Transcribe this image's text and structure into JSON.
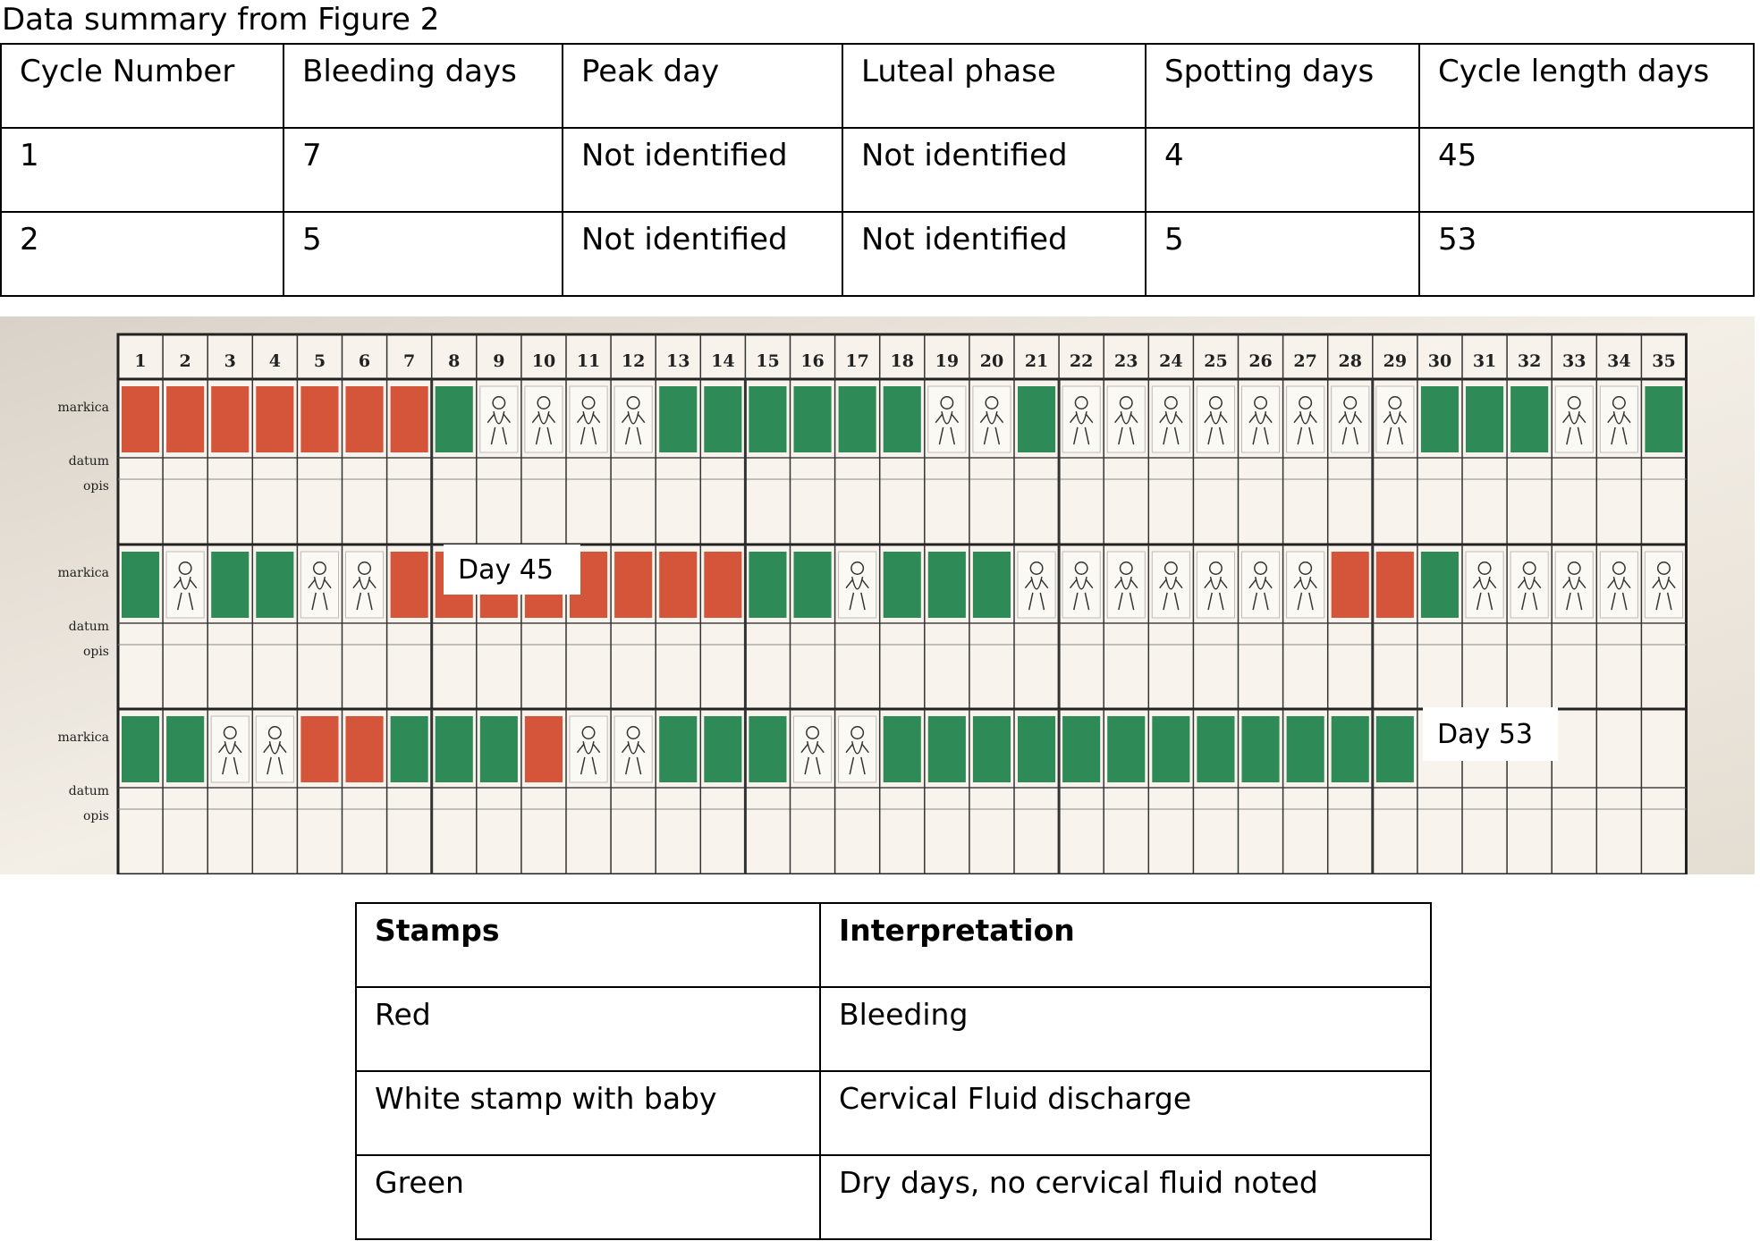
{
  "title": "Data summary from Figure 2",
  "summary_table": {
    "header": [
      "Cycle Number",
      "Bleeding days",
      "Peak day",
      "Luteal phase",
      "Spotting days",
      "Cycle length days"
    ],
    "rows": [
      [
        "1",
        "7",
        "Not identified",
        "Not identified",
        "4",
        "45"
      ],
      [
        "2",
        "5",
        "Not identified",
        "Not identified",
        "5",
        "53"
      ]
    ]
  },
  "chart_photo": {
    "day_numbers": [
      1,
      2,
      3,
      4,
      5,
      6,
      7,
      8,
      9,
      10,
      11,
      12,
      13,
      14,
      15,
      16,
      17,
      18,
      19,
      20,
      21,
      22,
      23,
      24,
      25,
      26,
      27,
      28,
      29,
      30,
      31,
      32,
      33,
      34,
      35
    ],
    "row_labels": [
      "markica",
      "datum",
      "opis"
    ],
    "annotations": [
      "Day 45",
      "Day 53"
    ]
  },
  "legend_table": {
    "header": [
      "Stamps",
      "Interpretation"
    ],
    "rows": [
      [
        "Red",
        "Bleeding"
      ],
      [
        "White stamp with baby",
        "Cervical Fluid discharge"
      ],
      [
        "Green",
        "Dry days, no cervical fluid noted"
      ]
    ]
  }
}
